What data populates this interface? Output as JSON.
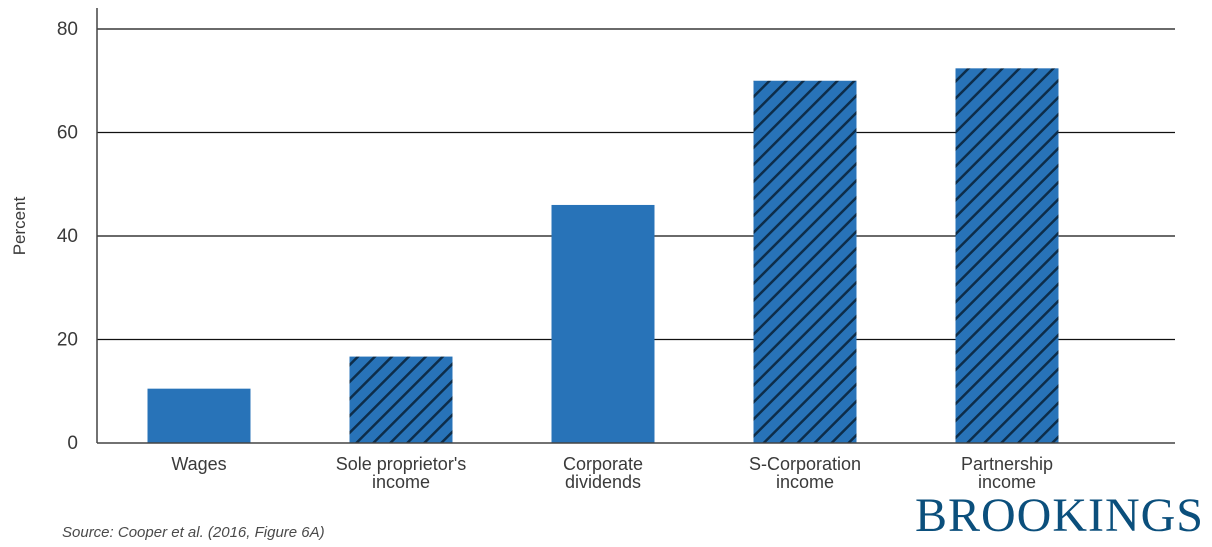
{
  "chart_data": {
    "type": "bar",
    "categories": [
      [
        "Wages"
      ],
      [
        "Sole proprietor's",
        "income"
      ],
      [
        "Corporate",
        "dividends"
      ],
      [
        "S-Corporation",
        "income"
      ],
      [
        "Partnership",
        "income"
      ]
    ],
    "values": [
      10.5,
      16.7,
      46,
      70,
      72.4
    ],
    "hatched": [
      false,
      true,
      false,
      true,
      true
    ],
    "ylabel": "Percent",
    "ylim": [
      0,
      80
    ],
    "yticks": [
      0,
      20,
      40,
      60,
      80
    ],
    "grid": true,
    "colors": {
      "bar": "#2873b8",
      "hatch": "#0d2d4a",
      "grid": "#111111"
    }
  },
  "source": "Source: Cooper et al. (2016, Figure 6A)",
  "logo": "BROOKINGS"
}
